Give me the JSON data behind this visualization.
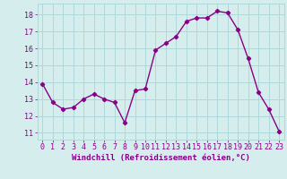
{
  "x": [
    0,
    1,
    2,
    3,
    4,
    5,
    6,
    7,
    8,
    9,
    10,
    11,
    12,
    13,
    14,
    15,
    16,
    17,
    18,
    19,
    20,
    21,
    22,
    23
  ],
  "y": [
    13.9,
    12.8,
    12.4,
    12.5,
    13.0,
    13.3,
    13.0,
    12.8,
    11.6,
    13.5,
    13.6,
    15.9,
    16.3,
    16.7,
    17.6,
    17.8,
    17.8,
    18.2,
    18.1,
    17.1,
    15.4,
    13.4,
    12.4,
    11.1
  ],
  "line_color": "#880088",
  "marker": "D",
  "markersize": 2.2,
  "linewidth": 1.0,
  "background_color": "#d5eeed",
  "grid_color": "#b0d8d8",
  "tick_color": "#880088",
  "label_color": "#880088",
  "xlabel": "Windchill (Refroidissement éolien,°C)",
  "xlabel_fontsize": 6.5,
  "ylabel_ticks": [
    11,
    12,
    13,
    14,
    15,
    16,
    17,
    18
  ],
  "xtick_labels": [
    "0",
    "1",
    "2",
    "3",
    "4",
    "5",
    "6",
    "7",
    "8",
    "9",
    "10",
    "11",
    "12",
    "13",
    "14",
    "15",
    "16",
    "17",
    "18",
    "19",
    "20",
    "21",
    "22",
    "23"
  ],
  "xlim": [
    -0.5,
    23.5
  ],
  "ylim": [
    10.6,
    18.65
  ],
  "tick_fontsize": 6.0
}
